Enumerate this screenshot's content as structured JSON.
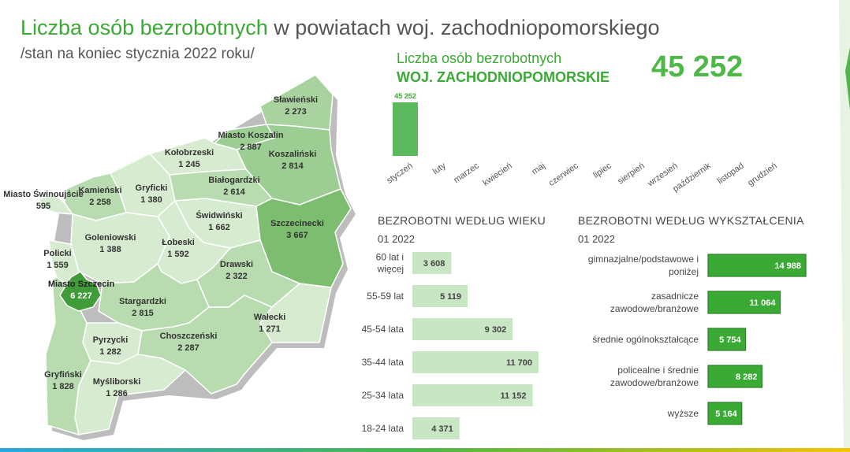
{
  "header": {
    "title_highlight": "Liczba osób bezrobotnych",
    "title_rest": " w powiatach woj. zachodniopomorskiego",
    "subtitle": "/stan na koniec stycznia 2022 roku/"
  },
  "kpi": {
    "label": "Liczba osób bezrobotnych",
    "region": "WOJ. ZACHODNIOPOMORSKIE",
    "value": "45 252"
  },
  "colors": {
    "accent": "#4db848",
    "age_bar": "#c8e6c3",
    "edu_bar": "#3aaa35",
    "map_dark": "#5aa84f"
  },
  "map_labels": [
    {
      "name": "Sławieński",
      "value": "2 273"
    },
    {
      "name": "Miasto Koszalin",
      "value": "2 887"
    },
    {
      "name": "Koszaliński",
      "value": "2 814"
    },
    {
      "name": "Kołobrzeski",
      "value": "1 245"
    },
    {
      "name": "Gryficki",
      "value": "1 380"
    },
    {
      "name": "Białogardzki",
      "value": "2 614"
    },
    {
      "name": "Miasto Świnoujście",
      "value": "595"
    },
    {
      "name": "Kamieński",
      "value": "2 258"
    },
    {
      "name": "Świdwiński",
      "value": "1 662"
    },
    {
      "name": "Szczecinecki",
      "value": "3 667"
    },
    {
      "name": "Goleniowski",
      "value": "1 388"
    },
    {
      "name": "Łobeski",
      "value": "1 592"
    },
    {
      "name": "Policki",
      "value": "1 559"
    },
    {
      "name": "Drawski",
      "value": "2 322"
    },
    {
      "name": "Miasto Szczecin",
      "value": "6 227"
    },
    {
      "name": "Stargardzki",
      "value": "2 815"
    },
    {
      "name": "Wałecki",
      "value": "1 271"
    },
    {
      "name": "Pyrzycki",
      "value": "1 282"
    },
    {
      "name": "Choszczeński",
      "value": "2 287"
    },
    {
      "name": "Gryfiński",
      "value": "1 828"
    },
    {
      "name": "Myśliborski",
      "value": "1 286"
    }
  ],
  "chart_data": [
    {
      "type": "bar",
      "categories": [
        "styczeń",
        "luty",
        "marzec",
        "kwiecień",
        "maj",
        "czerwiec",
        "lipiec",
        "sierpień",
        "wrzesień",
        "październik",
        "listopad",
        "grudzień"
      ],
      "values": [
        45252,
        null,
        null,
        null,
        null,
        null,
        null,
        null,
        null,
        null,
        null,
        null
      ],
      "data_labels": [
        "45 252"
      ]
    },
    {
      "type": "bar",
      "orientation": "horizontal",
      "title": "BEZROBOTNI WEDŁUG WIEKU",
      "subtitle": "01 2022",
      "categories": [
        "60 lat i więcej",
        "55-59 lat",
        "45-54 lata",
        "35-44 lata",
        "25-34 lata",
        "18-24 lata"
      ],
      "values": [
        3608,
        5119,
        9302,
        11700,
        11152,
        4371
      ],
      "data_labels": [
        "3 608",
        "5 119",
        "9 302",
        "11 700",
        "11 152",
        "4 371"
      ]
    },
    {
      "type": "bar",
      "orientation": "horizontal",
      "title": "BEZROBOTNI WEDŁUG WYKSZTAŁCENIA",
      "subtitle": "01 2022",
      "categories": [
        "gimnazjalne/podstawowe i poniżej",
        "zasadnicze zawodowe/branżowe",
        "średnie ogólnokształcące",
        "policealne i średnie zawodowe/branżowe",
        "wyższe"
      ],
      "values": [
        14988,
        11064,
        5754,
        8282,
        5164
      ],
      "data_labels": [
        "14 988",
        "11 064",
        "5 754",
        "8 282",
        "5 164"
      ]
    }
  ]
}
